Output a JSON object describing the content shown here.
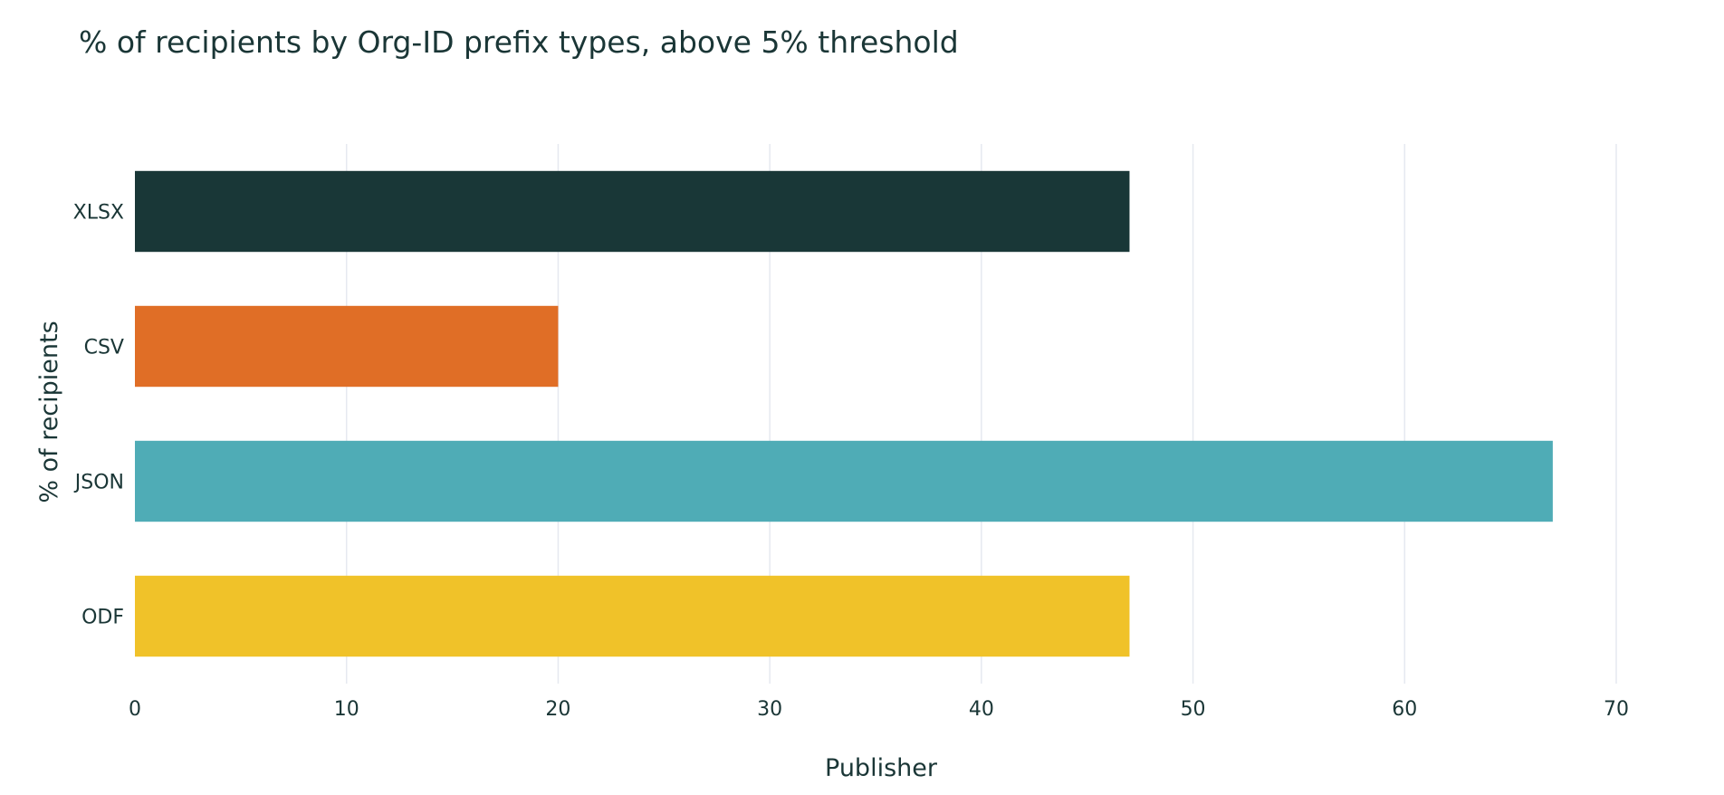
{
  "chart_data": {
    "type": "bar",
    "orientation": "horizontal",
    "title": "% of recipients by Org-ID prefix types, above 5% threshold",
    "xlabel": "Publisher",
    "ylabel": "% of recipients",
    "categories": [
      "XLSX",
      "CSV",
      "JSON",
      "ODF"
    ],
    "values": [
      47,
      20,
      67,
      47
    ],
    "colors": [
      "#193737",
      "#e06e26",
      "#4facb6",
      "#f0c229"
    ],
    "xlim": [
      0,
      70
    ],
    "xticks": [
      0,
      10,
      20,
      30,
      40,
      50,
      60,
      70
    ],
    "grid": "vertical",
    "legend": "none"
  }
}
